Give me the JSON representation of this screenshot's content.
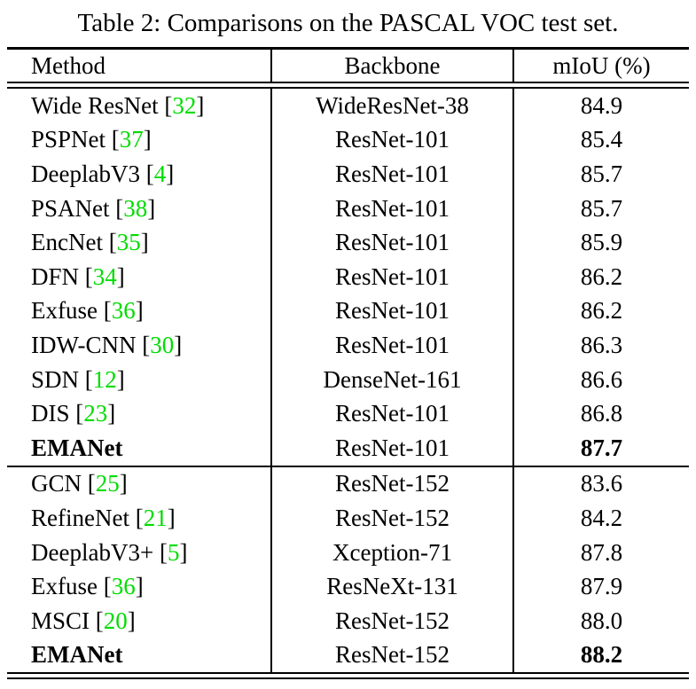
{
  "title": "Table 2: Comparisons on the PASCAL VOC test set.",
  "colors": {
    "citation_green": "#00DC00",
    "text": "#000000",
    "rule": "#000000"
  },
  "chart_data": {
    "type": "table",
    "title": "Table 2: Comparisons on the PASCAL VOC test set.",
    "columns": [
      "Method",
      "Backbone",
      "mIoU (%)"
    ],
    "sections": [
      {
        "rows": [
          {
            "method": "Wide ResNet",
            "cite": "32",
            "backbone": "WideResNet-38",
            "miou": "84.9",
            "bold": false
          },
          {
            "method": "PSPNet",
            "cite": "37",
            "backbone": "ResNet-101",
            "miou": "85.4",
            "bold": false
          },
          {
            "method": "DeeplabV3",
            "cite": "4",
            "backbone": "ResNet-101",
            "miou": "85.7",
            "bold": false
          },
          {
            "method": "PSANet",
            "cite": "38",
            "backbone": "ResNet-101",
            "miou": "85.7",
            "bold": false
          },
          {
            "method": "EncNet",
            "cite": "35",
            "backbone": "ResNet-101",
            "miou": "85.9",
            "bold": false
          },
          {
            "method": "DFN",
            "cite": "34",
            "backbone": "ResNet-101",
            "miou": "86.2",
            "bold": false
          },
          {
            "method": "Exfuse",
            "cite": "36",
            "backbone": "ResNet-101",
            "miou": "86.2",
            "bold": false
          },
          {
            "method": "IDW-CNN",
            "cite": "30",
            "backbone": "ResNet-101",
            "miou": "86.3",
            "bold": false
          },
          {
            "method": "SDN",
            "cite": "12",
            "backbone": "DenseNet-161",
            "miou": "86.6",
            "bold": false
          },
          {
            "method": "DIS",
            "cite": "23",
            "backbone": "ResNet-101",
            "miou": "86.8",
            "bold": false
          },
          {
            "method": "EMANet",
            "cite": "",
            "backbone": "ResNet-101",
            "miou": "87.7",
            "bold": true
          }
        ]
      },
      {
        "rows": [
          {
            "method": "GCN",
            "cite": "25",
            "backbone": "ResNet-152",
            "miou": "83.6",
            "bold": false
          },
          {
            "method": "RefineNet",
            "cite": "21",
            "backbone": "ResNet-152",
            "miou": "84.2",
            "bold": false
          },
          {
            "method": "DeeplabV3+",
            "cite": "5",
            "backbone": "Xception-71",
            "miou": "87.8",
            "bold": false
          },
          {
            "method": "Exfuse",
            "cite": "36",
            "backbone": "ResNeXt-131",
            "miou": "87.9",
            "bold": false
          },
          {
            "method": "MSCI",
            "cite": "20",
            "backbone": "ResNet-152",
            "miou": "88.0",
            "bold": false
          },
          {
            "method": "EMANet",
            "cite": "",
            "backbone": "ResNet-152",
            "miou": "88.2",
            "bold": true
          }
        ]
      }
    ]
  },
  "table": {
    "headers": [
      "Method",
      "Backbone",
      "mIoU (%)"
    ]
  }
}
